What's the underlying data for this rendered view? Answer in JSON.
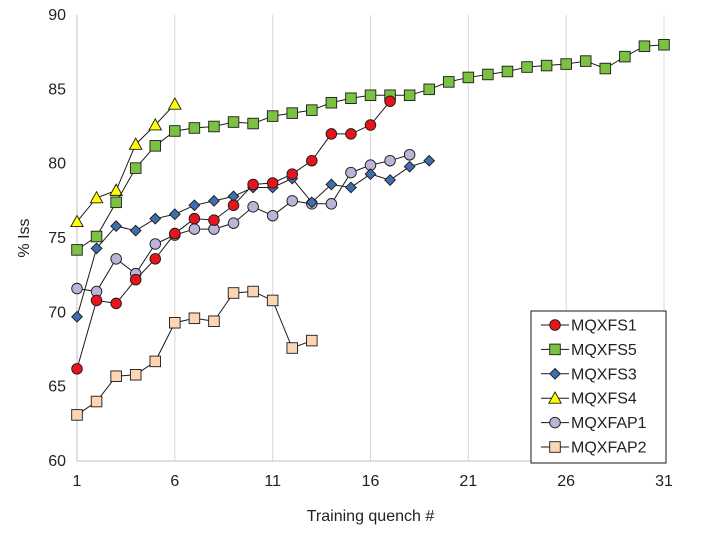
{
  "chart_data": {
    "type": "line",
    "xlabel": "Training quench #",
    "ylabel": "% Iss",
    "xlim": [
      1,
      31
    ],
    "ylim": [
      60,
      90
    ],
    "x_ticks": [
      "1",
      "6",
      "11",
      "16",
      "21",
      "26",
      "31"
    ],
    "y_ticks": [
      "60",
      "65",
      "70",
      "75",
      "80",
      "85",
      "90"
    ],
    "grid": "vertical",
    "legend_position": "bottom-right",
    "series": [
      {
        "name": "MQXFS1",
        "marker": "circle",
        "color": "#e8141c",
        "x": [
          1,
          2,
          3,
          4,
          5,
          6,
          7,
          8,
          9,
          10,
          11,
          12,
          13,
          14,
          15,
          16,
          17
        ],
        "y": [
          66.2,
          70.8,
          70.6,
          72.2,
          73.6,
          75.3,
          76.3,
          76.2,
          77.2,
          78.6,
          78.7,
          79.3,
          80.2,
          82.0,
          82.0,
          82.6,
          84.2
        ]
      },
      {
        "name": "MQXFS5",
        "marker": "square",
        "color": "#7cc242",
        "x": [
          1,
          2,
          3,
          4,
          5,
          6,
          7,
          8,
          9,
          10,
          11,
          12,
          13,
          14,
          15,
          16,
          17,
          18,
          19,
          20,
          21,
          22,
          23,
          24,
          25,
          26,
          27,
          28,
          29,
          30,
          31
        ],
        "y": [
          74.2,
          75.1,
          77.4,
          79.7,
          81.2,
          82.2,
          82.4,
          82.5,
          82.8,
          82.7,
          83.2,
          83.4,
          83.6,
          84.1,
          84.4,
          84.6,
          84.6,
          84.6,
          85.0,
          85.5,
          85.8,
          86.0,
          86.2,
          86.5,
          86.6,
          86.7,
          86.9,
          86.4,
          87.2,
          87.9,
          88.0
        ]
      },
      {
        "name": "MQXFS3",
        "marker": "diamond",
        "color": "#3f6eae",
        "x": [
          1,
          2,
          3,
          4,
          5,
          6,
          7,
          8,
          9,
          10,
          11,
          12,
          13,
          14,
          15,
          16,
          17,
          18,
          19
        ],
        "y": [
          69.7,
          74.3,
          75.8,
          75.5,
          76.3,
          76.6,
          77.2,
          77.5,
          77.8,
          78.4,
          78.4,
          79.0,
          77.4,
          78.6,
          78.4,
          79.3,
          78.9,
          79.8,
          80.2
        ]
      },
      {
        "name": "MQXFS4",
        "marker": "triangle",
        "color": "#ffff00",
        "x": [
          1,
          2,
          3,
          4,
          5,
          6
        ],
        "y": [
          76.1,
          77.7,
          78.2,
          81.3,
          82.6,
          84.0
        ]
      },
      {
        "name": "MQXFAP1",
        "marker": "circle",
        "color": "#bdb3d8",
        "x": [
          1,
          2,
          3,
          4,
          5,
          6,
          7,
          8,
          9,
          10,
          11,
          12,
          13,
          14,
          15,
          16,
          17,
          18
        ],
        "y": [
          71.6,
          71.4,
          73.6,
          72.6,
          74.6,
          75.2,
          75.6,
          75.6,
          76.0,
          77.1,
          76.5,
          77.5,
          77.3,
          77.3,
          79.4,
          79.9,
          80.2,
          80.6
        ]
      },
      {
        "name": "MQXFAP2",
        "marker": "square",
        "color": "#fcd5b5",
        "x": [
          1,
          2,
          3,
          4,
          5,
          6,
          7,
          8,
          9,
          10,
          11,
          12,
          13
        ],
        "y": [
          63.1,
          64.0,
          65.7,
          65.8,
          66.7,
          69.3,
          69.6,
          69.4,
          71.3,
          71.4,
          70.8,
          67.6,
          68.1
        ]
      }
    ]
  }
}
